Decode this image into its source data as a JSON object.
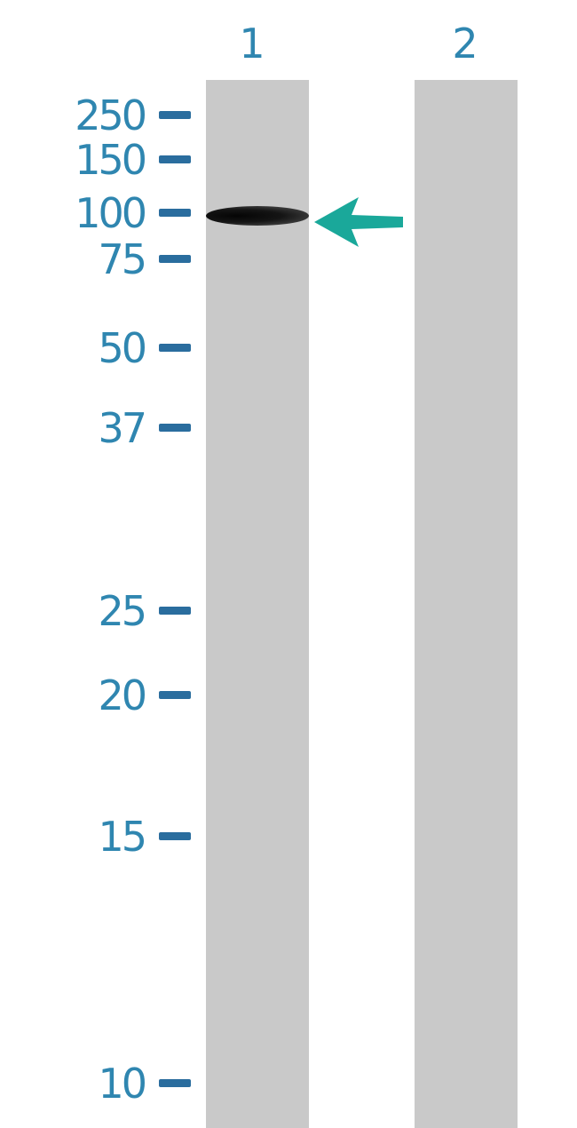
{
  "lanes": [
    {
      "label": "1"
    },
    {
      "label": "2"
    }
  ],
  "markers": [
    {
      "label": "250"
    },
    {
      "label": "150"
    },
    {
      "label": "100"
    },
    {
      "label": "75"
    },
    {
      "label": "50"
    },
    {
      "label": "37"
    },
    {
      "label": "25"
    },
    {
      "label": "20"
    },
    {
      "label": "15"
    },
    {
      "label": "10"
    }
  ],
  "band": {
    "lane": 1,
    "marker": "100"
  },
  "colors": {
    "label": "#2f86b0",
    "tick": "#2a6d9e",
    "arrow": "#1aa89a",
    "lane": "#c9c9c9"
  },
  "arrow_icon": "left-arrow"
}
